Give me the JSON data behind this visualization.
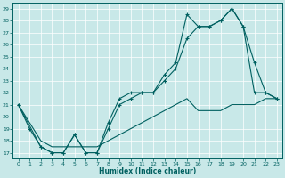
{
  "title": "",
  "xlabel": "Humidex (Indice chaleur)",
  "bg_color": "#c8e8e8",
  "line_color": "#006060",
  "grid_color": "#a0c8c8",
  "xlim": [
    -0.5,
    23.5
  ],
  "ylim": [
    16.5,
    29.5
  ],
  "yticks": [
    17,
    18,
    19,
    20,
    21,
    22,
    23,
    24,
    25,
    26,
    27,
    28,
    29
  ],
  "xticks": [
    0,
    1,
    2,
    3,
    4,
    5,
    6,
    7,
    8,
    9,
    10,
    11,
    12,
    13,
    14,
    15,
    16,
    17,
    18,
    19,
    20,
    21,
    22,
    23
  ],
  "series": {
    "upper": {
      "x": [
        0,
        1,
        2,
        3,
        4,
        5,
        6,
        7,
        8,
        9,
        10,
        11,
        12,
        13,
        14,
        15,
        16,
        17,
        18,
        19,
        20,
        21,
        22,
        23
      ],
      "y": [
        21,
        19,
        17.5,
        17,
        17,
        18.5,
        17,
        17,
        19.5,
        21.5,
        22,
        22,
        22,
        23.5,
        24.5,
        28.5,
        27.5,
        27.5,
        28,
        29,
        27.5,
        24.5,
        22,
        21.5
      ],
      "marker": true
    },
    "middle": {
      "x": [
        0,
        2,
        3,
        4,
        5,
        6,
        7,
        8,
        9,
        10,
        11,
        12,
        13,
        14,
        15,
        16,
        17,
        18,
        19,
        20,
        21,
        22,
        23
      ],
      "y": [
        21,
        17.5,
        17,
        17,
        18.5,
        17,
        17,
        19,
        21,
        21.5,
        22,
        22,
        23,
        24,
        26.5,
        27.5,
        27.5,
        28,
        29,
        27.5,
        22,
        22,
        21.5
      ],
      "marker": true
    },
    "lower": {
      "x": [
        0,
        1,
        2,
        3,
        4,
        5,
        6,
        7,
        8,
        9,
        10,
        11,
        12,
        13,
        14,
        15,
        16,
        17,
        18,
        19,
        20,
        21,
        22,
        23
      ],
      "y": [
        21,
        19.5,
        18,
        17.5,
        17.5,
        17.5,
        17.5,
        17.5,
        18,
        18.5,
        19,
        19.5,
        20,
        20.5,
        21,
        21.5,
        20.5,
        20.5,
        20.5,
        21,
        21,
        21,
        21.5,
        21.5
      ],
      "marker": false
    }
  }
}
